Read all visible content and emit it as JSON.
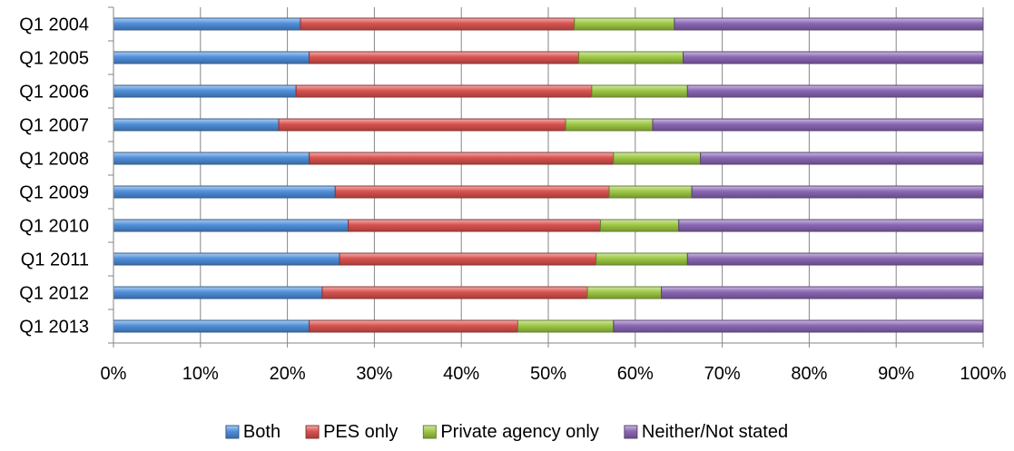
{
  "chart_data": {
    "type": "bar",
    "orientation": "horizontal",
    "stacked": "percent",
    "title": "",
    "xlabel": "",
    "ylabel": "",
    "xlim": [
      0,
      100
    ],
    "x_ticks": [
      "0%",
      "10%",
      "20%",
      "30%",
      "40%",
      "50%",
      "60%",
      "70%",
      "80%",
      "90%",
      "100%"
    ],
    "categories": [
      "Q1 2004",
      "Q1 2005",
      "Q1 2006",
      "Q1 2007",
      "Q1 2008",
      "Q1 2009",
      "Q1 2010",
      "Q1 2011",
      "Q1 2012",
      "Q1 2013"
    ],
    "series": [
      {
        "name": "Both",
        "color": "#4f8fdb",
        "values": [
          21.5,
          22.5,
          21,
          19,
          22.5,
          25.5,
          27,
          26,
          24,
          22.5
        ]
      },
      {
        "name": "PES only",
        "color": "#d9524f",
        "values": [
          31.5,
          31,
          34,
          33,
          35,
          31.5,
          29,
          29.5,
          30.5,
          24
        ]
      },
      {
        "name": "Private agency only",
        "color": "#9dc843",
        "values": [
          11.5,
          12,
          11,
          10,
          10,
          9.5,
          9,
          10.5,
          8.5,
          11
        ]
      },
      {
        "name": "Neither/Not stated",
        "color": "#8a67b4",
        "values": [
          35.5,
          34.5,
          34,
          38,
          32.5,
          33.5,
          35,
          34,
          37,
          42.5
        ]
      }
    ],
    "grid": true,
    "legend_position": "bottom"
  }
}
